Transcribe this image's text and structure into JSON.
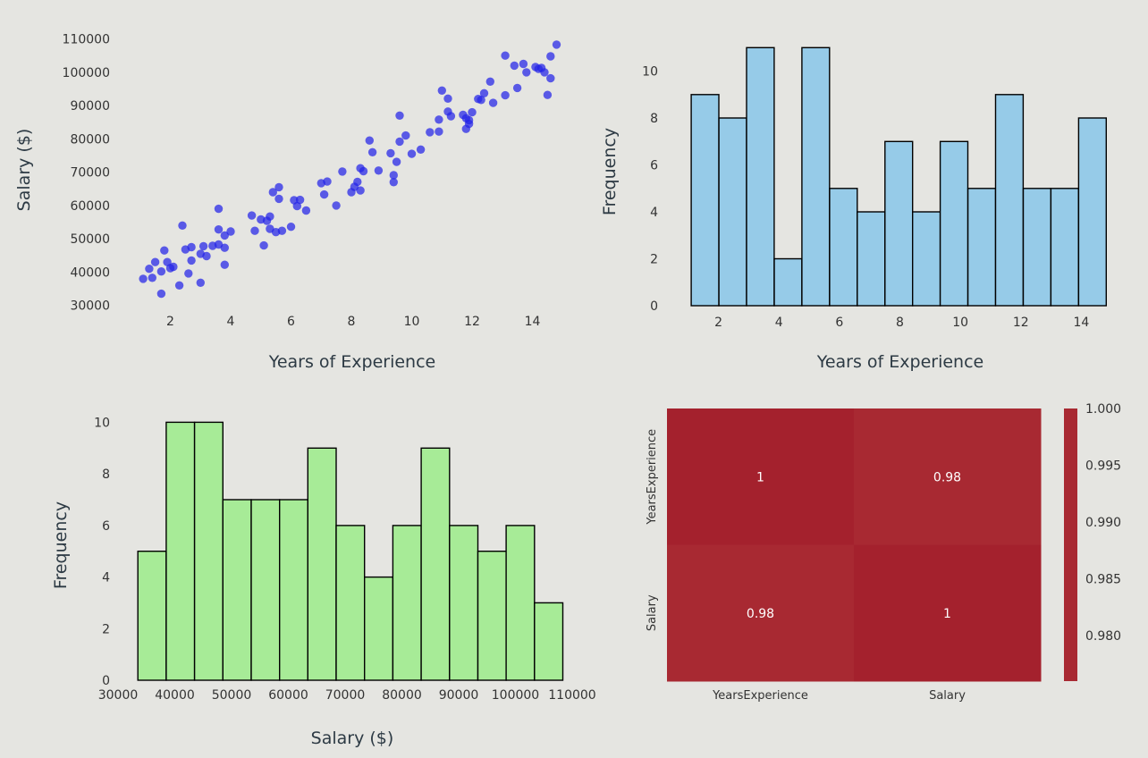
{
  "chart_data": [
    {
      "type": "scatter",
      "xlabel": "Years of Experience",
      "ylabel": "Salary ($)",
      "xlim": [
        0.8,
        15.2
      ],
      "ylim": [
        27500,
        111500
      ],
      "xticks": [
        2,
        4,
        6,
        8,
        10,
        12,
        14
      ],
      "yticks": [
        30000,
        40000,
        50000,
        60000,
        70000,
        80000,
        90000,
        100000,
        110000
      ],
      "grid": false,
      "color": "#2323e8",
      "points": [
        [
          1.1,
          38000
        ],
        [
          1.3,
          41000
        ],
        [
          1.4,
          38300
        ],
        [
          1.5,
          43000
        ],
        [
          1.7,
          40200
        ],
        [
          1.7,
          33500
        ],
        [
          1.8,
          46500
        ],
        [
          1.9,
          43000
        ],
        [
          2.0,
          41200
        ],
        [
          2.1,
          41600
        ],
        [
          2.3,
          36000
        ],
        [
          2.4,
          54000
        ],
        [
          2.5,
          46800
        ],
        [
          2.6,
          39600
        ],
        [
          2.7,
          47500
        ],
        [
          2.7,
          43500
        ],
        [
          3.0,
          45500
        ],
        [
          3.0,
          36800
        ],
        [
          3.1,
          47800
        ],
        [
          3.2,
          44800
        ],
        [
          3.4,
          47900
        ],
        [
          3.6,
          48300
        ],
        [
          3.6,
          59000
        ],
        [
          3.6,
          52800
        ],
        [
          3.8,
          51000
        ],
        [
          3.8,
          42200
        ],
        [
          3.8,
          47300
        ],
        [
          4.0,
          52200
        ],
        [
          4.7,
          57000
        ],
        [
          4.8,
          52400
        ],
        [
          5.0,
          55800
        ],
        [
          5.1,
          48000
        ],
        [
          5.2,
          55400
        ],
        [
          5.3,
          56700
        ],
        [
          5.3,
          53000
        ],
        [
          5.4,
          64000
        ],
        [
          5.5,
          52000
        ],
        [
          5.6,
          65500
        ],
        [
          5.6,
          62000
        ],
        [
          5.7,
          52400
        ],
        [
          6.0,
          53600
        ],
        [
          6.1,
          61600
        ],
        [
          6.2,
          59800
        ],
        [
          6.3,
          61700
        ],
        [
          6.5,
          58500
        ],
        [
          7.0,
          66700
        ],
        [
          7.1,
          63300
        ],
        [
          7.2,
          67200
        ],
        [
          7.5,
          60000
        ],
        [
          7.7,
          70200
        ],
        [
          8.0,
          64000
        ],
        [
          8.1,
          65600
        ],
        [
          8.2,
          67100
        ],
        [
          8.3,
          64500
        ],
        [
          8.3,
          71200
        ],
        [
          8.4,
          70300
        ],
        [
          8.6,
          79500
        ],
        [
          8.7,
          76000
        ],
        [
          8.9,
          70500
        ],
        [
          9.3,
          75700
        ],
        [
          9.4,
          69100
        ],
        [
          9.4,
          67000
        ],
        [
          9.5,
          73100
        ],
        [
          9.6,
          87000
        ],
        [
          9.6,
          79200
        ],
        [
          9.8,
          81000
        ],
        [
          10.0,
          75500
        ],
        [
          10.3,
          76800
        ],
        [
          10.6,
          82000
        ],
        [
          10.9,
          85800
        ],
        [
          10.9,
          82200
        ],
        [
          11.0,
          94500
        ],
        [
          11.2,
          88200
        ],
        [
          11.2,
          92100
        ],
        [
          11.3,
          86800
        ],
        [
          11.7,
          87200
        ],
        [
          11.8,
          86200
        ],
        [
          11.8,
          83000
        ],
        [
          11.9,
          85600
        ],
        [
          11.9,
          84500
        ],
        [
          12.0,
          88000
        ],
        [
          12.2,
          92000
        ],
        [
          12.3,
          91700
        ],
        [
          12.4,
          93700
        ],
        [
          12.6,
          97200
        ],
        [
          12.7,
          90800
        ],
        [
          13.1,
          105000
        ],
        [
          13.1,
          93100
        ],
        [
          13.4,
          102000
        ],
        [
          13.5,
          95300
        ],
        [
          13.7,
          102500
        ],
        [
          13.8,
          100000
        ],
        [
          14.1,
          101600
        ],
        [
          14.2,
          101000
        ],
        [
          14.3,
          101300
        ],
        [
          14.4,
          100000
        ],
        [
          14.5,
          93200
        ],
        [
          14.6,
          104800
        ],
        [
          14.6,
          98200
        ],
        [
          14.8,
          108300
        ]
      ]
    },
    {
      "type": "bar",
      "xlabel": "Years of Experience",
      "ylabel": "Frequency",
      "xlim": [
        0.8,
        15.2
      ],
      "ylim": [
        0,
        11.05
      ],
      "xticks": [
        2,
        4,
        6,
        8,
        10,
        12,
        14
      ],
      "yticks": [
        0,
        2,
        4,
        6,
        8,
        10
      ],
      "bin_start": 1.1,
      "bin_width": 0.915,
      "values": [
        9,
        8,
        11,
        2,
        11,
        5,
        4,
        7,
        4,
        7,
        5,
        9,
        5,
        5,
        8
      ],
      "color": "#96cbe8"
    },
    {
      "type": "bar",
      "xlabel": "Salary ($)",
      "ylabel": "Frequency",
      "xlim": [
        30000,
        110000
      ],
      "ylim": [
        0,
        10.05
      ],
      "xticks": [
        30000,
        40000,
        50000,
        60000,
        70000,
        80000,
        90000,
        100000,
        110000
      ],
      "yticks": [
        0,
        2,
        4,
        6,
        8,
        10
      ],
      "bin_start": 33500,
      "bin_width": 4990,
      "values": [
        5,
        10,
        10,
        7,
        7,
        7,
        9,
        6,
        4,
        6,
        9,
        6,
        5,
        6,
        3
      ],
      "color": "#a7eb97"
    },
    {
      "type": "heatmap",
      "xlabels": [
        "YearsExperience",
        "Salary"
      ],
      "ylabels": [
        "YearsExperience",
        "Salary"
      ],
      "values": [
        [
          1,
          0.98
        ],
        [
          0.98,
          1
        ]
      ],
      "annotations": [
        [
          "1",
          "0.98"
        ],
        [
          "0.98",
          "1"
        ]
      ],
      "cell_colors": [
        [
          "#a4212d",
          "#a82932"
        ],
        [
          "#a82932",
          "#a4212d"
        ]
      ],
      "colorbar": {
        "ticks": [
          0.98,
          0.985,
          0.99,
          0.995,
          1.0
        ],
        "tick_labels": [
          "0.980",
          "0.985",
          "0.990",
          "0.995",
          "1.000"
        ],
        "range": [
          0.976,
          1.0
        ],
        "color": "#a82932"
      }
    }
  ]
}
